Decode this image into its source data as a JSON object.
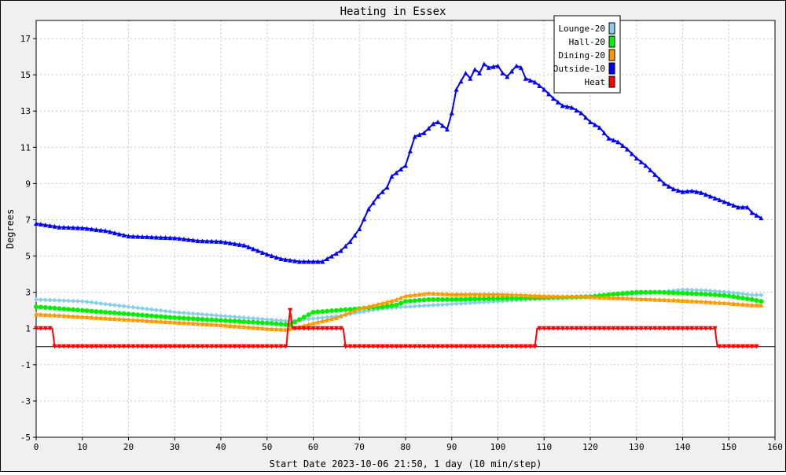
{
  "chart_data": {
    "type": "line",
    "title": "Heating in Essex",
    "xlabel": "Start Date 2023-10-06 21:50, 1 day (10 min/step)",
    "ylabel": "Degrees",
    "xlim": [
      0,
      160
    ],
    "ylim": [
      -5,
      18
    ],
    "xticks": [
      0,
      10,
      20,
      30,
      40,
      50,
      60,
      70,
      80,
      90,
      100,
      110,
      120,
      130,
      140,
      150,
      160
    ],
    "yticks": [
      -5,
      -3,
      -1,
      1,
      3,
      5,
      7,
      9,
      11,
      13,
      15,
      17
    ],
    "grid": true,
    "legend_position": "top-right",
    "series": [
      {
        "name": "Lounge-20",
        "color": "#87ceeb",
        "marker": "diamond",
        "points": [
          [
            0,
            2.6
          ],
          [
            10,
            2.5
          ],
          [
            20,
            2.2
          ],
          [
            30,
            1.9
          ],
          [
            40,
            1.7
          ],
          [
            50,
            1.5
          ],
          [
            55,
            1.4
          ],
          [
            58,
            1.5
          ],
          [
            62,
            1.6
          ],
          [
            66,
            1.7
          ],
          [
            70,
            1.9
          ],
          [
            75,
            2.1
          ],
          [
            80,
            2.2
          ],
          [
            90,
            2.35
          ],
          [
            100,
            2.5
          ],
          [
            110,
            2.65
          ],
          [
            120,
            2.8
          ],
          [
            130,
            2.9
          ],
          [
            135,
            3.0
          ],
          [
            140,
            3.15
          ],
          [
            145,
            3.1
          ],
          [
            150,
            3.0
          ],
          [
            155,
            2.85
          ],
          [
            157,
            2.85
          ]
        ]
      },
      {
        "name": "Hall-20",
        "color": "#00ee00",
        "marker": "circle",
        "points": [
          [
            0,
            2.2
          ],
          [
            10,
            2.0
          ],
          [
            20,
            1.8
          ],
          [
            30,
            1.6
          ],
          [
            40,
            1.45
          ],
          [
            50,
            1.3
          ],
          [
            55,
            1.2
          ],
          [
            57,
            1.5
          ],
          [
            60,
            1.9
          ],
          [
            65,
            2.0
          ],
          [
            70,
            2.1
          ],
          [
            75,
            2.2
          ],
          [
            78,
            2.3
          ],
          [
            80,
            2.5
          ],
          [
            85,
            2.6
          ],
          [
            90,
            2.6
          ],
          [
            100,
            2.65
          ],
          [
            110,
            2.7
          ],
          [
            120,
            2.75
          ],
          [
            125,
            2.9
          ],
          [
            130,
            3.0
          ],
          [
            135,
            3.0
          ],
          [
            140,
            2.95
          ],
          [
            145,
            2.9
          ],
          [
            150,
            2.8
          ],
          [
            155,
            2.6
          ],
          [
            157,
            2.5
          ]
        ]
      },
      {
        "name": "Dining-20",
        "color": "#ff9900",
        "marker": "triangle-up",
        "points": [
          [
            0,
            1.8
          ],
          [
            10,
            1.65
          ],
          [
            20,
            1.5
          ],
          [
            30,
            1.35
          ],
          [
            40,
            1.2
          ],
          [
            50,
            1.0
          ],
          [
            54,
            0.95
          ],
          [
            57,
            1.1
          ],
          [
            60,
            1.3
          ],
          [
            65,
            1.6
          ],
          [
            70,
            2.1
          ],
          [
            75,
            2.4
          ],
          [
            78,
            2.6
          ],
          [
            80,
            2.8
          ],
          [
            85,
            2.95
          ],
          [
            90,
            2.9
          ],
          [
            100,
            2.9
          ],
          [
            110,
            2.8
          ],
          [
            120,
            2.75
          ],
          [
            130,
            2.65
          ],
          [
            140,
            2.55
          ],
          [
            150,
            2.4
          ],
          [
            155,
            2.3
          ],
          [
            157,
            2.3
          ]
        ]
      },
      {
        "name": "Outside-10",
        "color": "#0000ff",
        "marker": "triangle-up",
        "points": [
          [
            0,
            6.8
          ],
          [
            5,
            6.6
          ],
          [
            10,
            6.55
          ],
          [
            15,
            6.4
          ],
          [
            20,
            6.1
          ],
          [
            25,
            6.05
          ],
          [
            30,
            6.0
          ],
          [
            35,
            5.85
          ],
          [
            40,
            5.8
          ],
          [
            45,
            5.6
          ],
          [
            48,
            5.3
          ],
          [
            50,
            5.1
          ],
          [
            53,
            4.85
          ],
          [
            57,
            4.7
          ],
          [
            62,
            4.7
          ],
          [
            66,
            5.3
          ],
          [
            68,
            5.8
          ],
          [
            70,
            6.5
          ],
          [
            72,
            7.6
          ],
          [
            74,
            8.3
          ],
          [
            76,
            8.8
          ],
          [
            77,
            9.4
          ],
          [
            80,
            10.0
          ],
          [
            82,
            11.6
          ],
          [
            84,
            11.8
          ],
          [
            86,
            12.3
          ],
          [
            87,
            12.4
          ],
          [
            89,
            12.0
          ],
          [
            90,
            12.9
          ],
          [
            91,
            14.2
          ],
          [
            93,
            15.1
          ],
          [
            94,
            14.8
          ],
          [
            95,
            15.3
          ],
          [
            96,
            15.1
          ],
          [
            97,
            15.6
          ],
          [
            98,
            15.4
          ],
          [
            100,
            15.5
          ],
          [
            101,
            15.1
          ],
          [
            102,
            14.9
          ],
          [
            103,
            15.2
          ],
          [
            104,
            15.5
          ],
          [
            105,
            15.4
          ],
          [
            106,
            14.8
          ],
          [
            108,
            14.6
          ],
          [
            110,
            14.2
          ],
          [
            112,
            13.7
          ],
          [
            114,
            13.3
          ],
          [
            116,
            13.2
          ],
          [
            118,
            12.9
          ],
          [
            120,
            12.4
          ],
          [
            122,
            12.1
          ],
          [
            124,
            11.5
          ],
          [
            126,
            11.3
          ],
          [
            128,
            10.9
          ],
          [
            130,
            10.4
          ],
          [
            132,
            10.0
          ],
          [
            134,
            9.5
          ],
          [
            136,
            9.0
          ],
          [
            138,
            8.7
          ],
          [
            140,
            8.55
          ],
          [
            142,
            8.6
          ],
          [
            144,
            8.5
          ],
          [
            146,
            8.3
          ],
          [
            148,
            8.1
          ],
          [
            150,
            7.9
          ],
          [
            152,
            7.7
          ],
          [
            154,
            7.7
          ],
          [
            155,
            7.4
          ],
          [
            157,
            7.1
          ]
        ]
      },
      {
        "name": "Heat",
        "color": "#ff0000",
        "marker": "triangle-down",
        "points": [
          [
            0,
            1
          ],
          [
            3.5,
            1
          ],
          [
            4,
            0
          ],
          [
            54.2,
            0
          ],
          [
            54.5,
            1
          ],
          [
            55,
            2
          ],
          [
            55.5,
            1
          ],
          [
            66.5,
            1
          ],
          [
            67,
            0
          ],
          [
            108,
            0
          ],
          [
            108.5,
            1
          ],
          [
            147,
            1
          ],
          [
            147.5,
            0
          ],
          [
            156,
            0
          ]
        ]
      }
    ]
  }
}
